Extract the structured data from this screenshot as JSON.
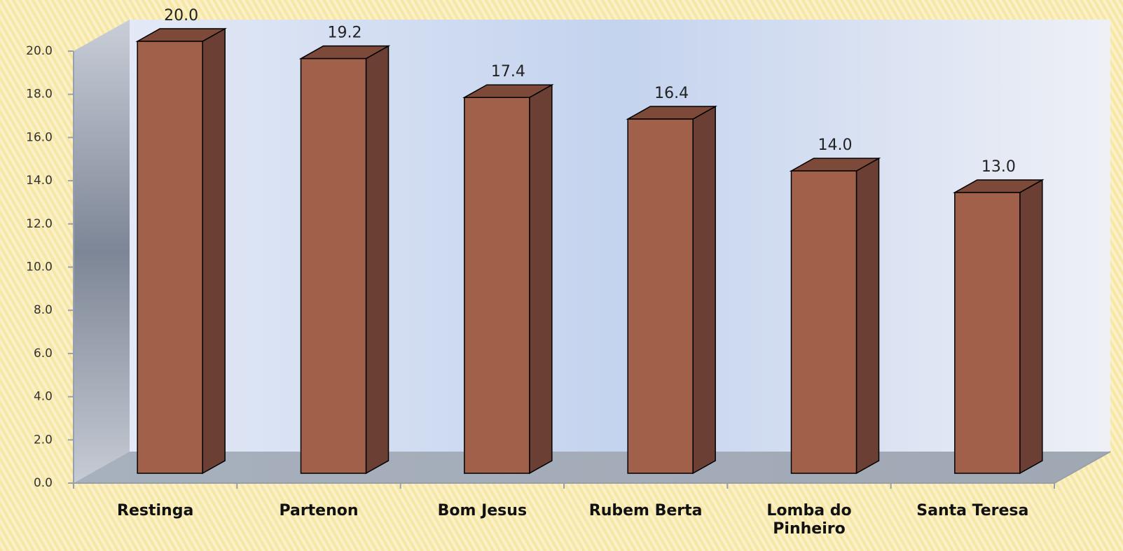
{
  "chart_data": {
    "type": "bar3d",
    "categories": [
      "Restinga",
      "Partenon",
      "Bom Jesus",
      "Rubem Berta",
      "Lomba do Pinheiro",
      "Santa Teresa"
    ],
    "values": [
      20.0,
      19.2,
      17.4,
      16.4,
      14.0,
      13.0
    ],
    "value_labels": [
      "20.0",
      "19.2",
      "17.4",
      "16.4",
      "14.0",
      "13.0"
    ],
    "color": "#a0604a",
    "ylim": [
      0,
      20
    ],
    "yticks": [
      {
        "value": 0,
        "label": "0.0"
      },
      {
        "value": 2,
        "label": "2.0"
      },
      {
        "value": 4,
        "label": "4.0"
      },
      {
        "value": 6,
        "label": "6.0"
      },
      {
        "value": 8,
        "label": "8.0"
      },
      {
        "value": 10,
        "label": "10.0"
      },
      {
        "value": 12,
        "label": "12.0"
      },
      {
        "value": 14,
        "label": "14.0"
      },
      {
        "value": 16,
        "label": "16.0"
      },
      {
        "value": 18,
        "label": "18.0"
      },
      {
        "value": 20,
        "label": "20.0"
      }
    ]
  }
}
